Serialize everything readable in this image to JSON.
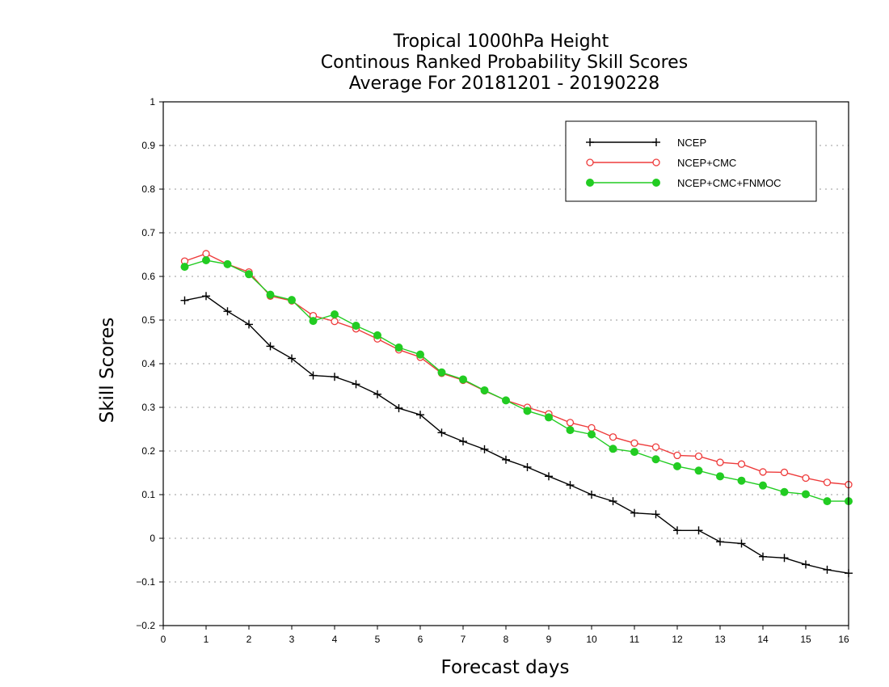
{
  "chart_data": {
    "type": "line",
    "title": [
      "Tropical 1000hPa Height",
      "Continous Ranked Probability Skill Scores",
      "Average For 20181201 - 20190228"
    ],
    "xlabel": "Forecast days",
    "ylabel": "Skill Scores",
    "xlim": [
      0,
      16
    ],
    "ylim": [
      -0.2,
      1
    ],
    "xticks": [
      "0",
      "1",
      "2",
      "3",
      "4",
      "5",
      "6",
      "7",
      "8",
      "9",
      "10",
      "11",
      "12",
      "13",
      "14",
      "15",
      "16"
    ],
    "yticks": [
      "−0.2",
      "−0.1",
      "0",
      "0.1",
      "0.2",
      "0.3",
      "0.4",
      "0.5",
      "0.6",
      "0.7",
      "0.8",
      "0.9",
      "1"
    ],
    "grid": "horizontal dotted",
    "legend_position": "top-right",
    "x": [
      0.5,
      1,
      1.5,
      2,
      2.5,
      3,
      3.5,
      4,
      4.5,
      5,
      5.5,
      6,
      6.5,
      7,
      7.5,
      8,
      8.5,
      9,
      9.5,
      10,
      10.5,
      11,
      11.5,
      12,
      12.5,
      13,
      13.5,
      14,
      14.5,
      15,
      15.5,
      16
    ],
    "series": [
      {
        "name": "NCEP",
        "color": "#000000",
        "marker": "plus",
        "values": [
          0.545,
          0.555,
          0.52,
          0.49,
          0.44,
          0.412,
          0.373,
          0.37,
          0.353,
          0.33,
          0.298,
          0.283,
          0.242,
          0.222,
          0.204,
          0.18,
          0.163,
          0.142,
          0.122,
          0.1,
          0.085,
          0.058,
          0.055,
          0.018,
          0.018,
          -0.008,
          -0.012,
          -0.042,
          -0.045,
          -0.06,
          -0.072,
          -0.08
        ]
      },
      {
        "name": "NCEP+CMC",
        "color": "#ee3b3b",
        "marker": "open-circle",
        "values": [
          0.635,
          0.652,
          0.628,
          0.61,
          0.555,
          0.544,
          0.51,
          0.497,
          0.48,
          0.457,
          0.432,
          0.415,
          0.378,
          0.362,
          0.338,
          0.316,
          0.3,
          0.285,
          0.265,
          0.253,
          0.232,
          0.218,
          0.209,
          0.19,
          0.188,
          0.174,
          0.17,
          0.152,
          0.151,
          0.138,
          0.128,
          0.123
        ]
      },
      {
        "name": "NCEP+CMC+FNMOC",
        "color": "#22cc22",
        "marker": "filled-circle",
        "values": [
          0.622,
          0.637,
          0.628,
          0.605,
          0.558,
          0.546,
          0.498,
          0.513,
          0.487,
          0.465,
          0.437,
          0.421,
          0.38,
          0.364,
          0.339,
          0.316,
          0.292,
          0.277,
          0.248,
          0.238,
          0.205,
          0.198,
          0.181,
          0.165,
          0.155,
          0.142,
          0.132,
          0.121,
          0.106,
          0.101,
          0.085,
          0.085
        ]
      }
    ]
  }
}
